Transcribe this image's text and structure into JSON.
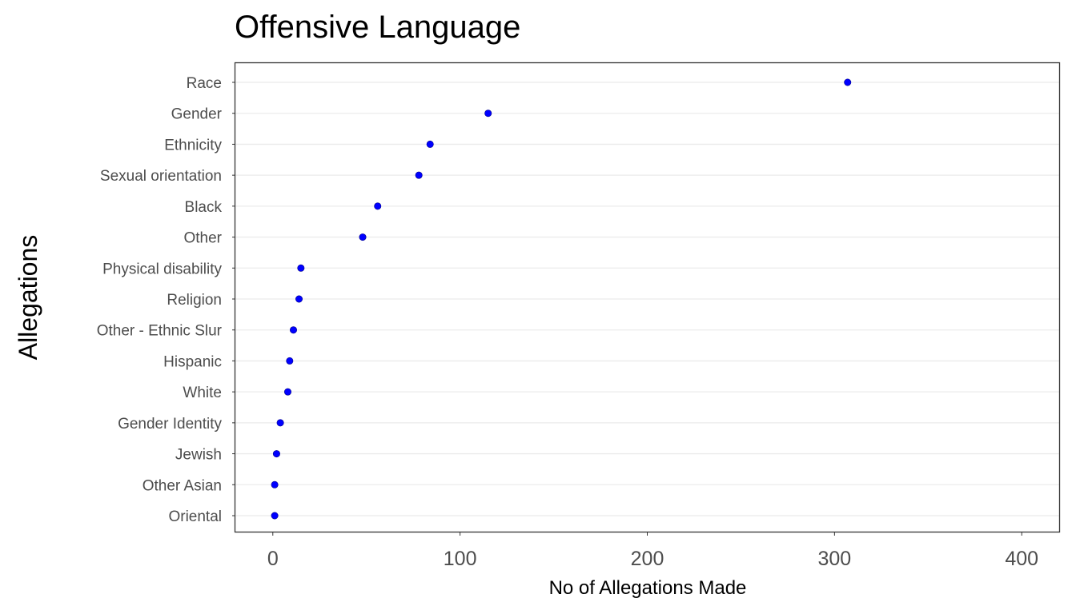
{
  "chart_data": {
    "type": "scatter",
    "title": "Offensive Language",
    "xlabel": "No of Allegations Made",
    "ylabel": "Allegations",
    "xlim": [
      -20,
      420
    ],
    "xticks": [
      0,
      100,
      200,
      300,
      400
    ],
    "grid": "horizontal",
    "legend": "none",
    "point_color": "#0000ff",
    "categories": [
      "Race",
      "Gender",
      "Ethnicity",
      "Sexual orientation",
      "Black",
      "Other",
      "Physical disability",
      "Religion",
      "Other - Ethnic Slur",
      "Hispanic",
      "White",
      "Gender Identity",
      "Jewish",
      "Other Asian",
      "Oriental"
    ],
    "values": [
      307,
      115,
      84,
      78,
      56,
      48,
      15,
      14,
      11,
      9,
      8,
      4,
      2,
      1,
      1
    ]
  }
}
